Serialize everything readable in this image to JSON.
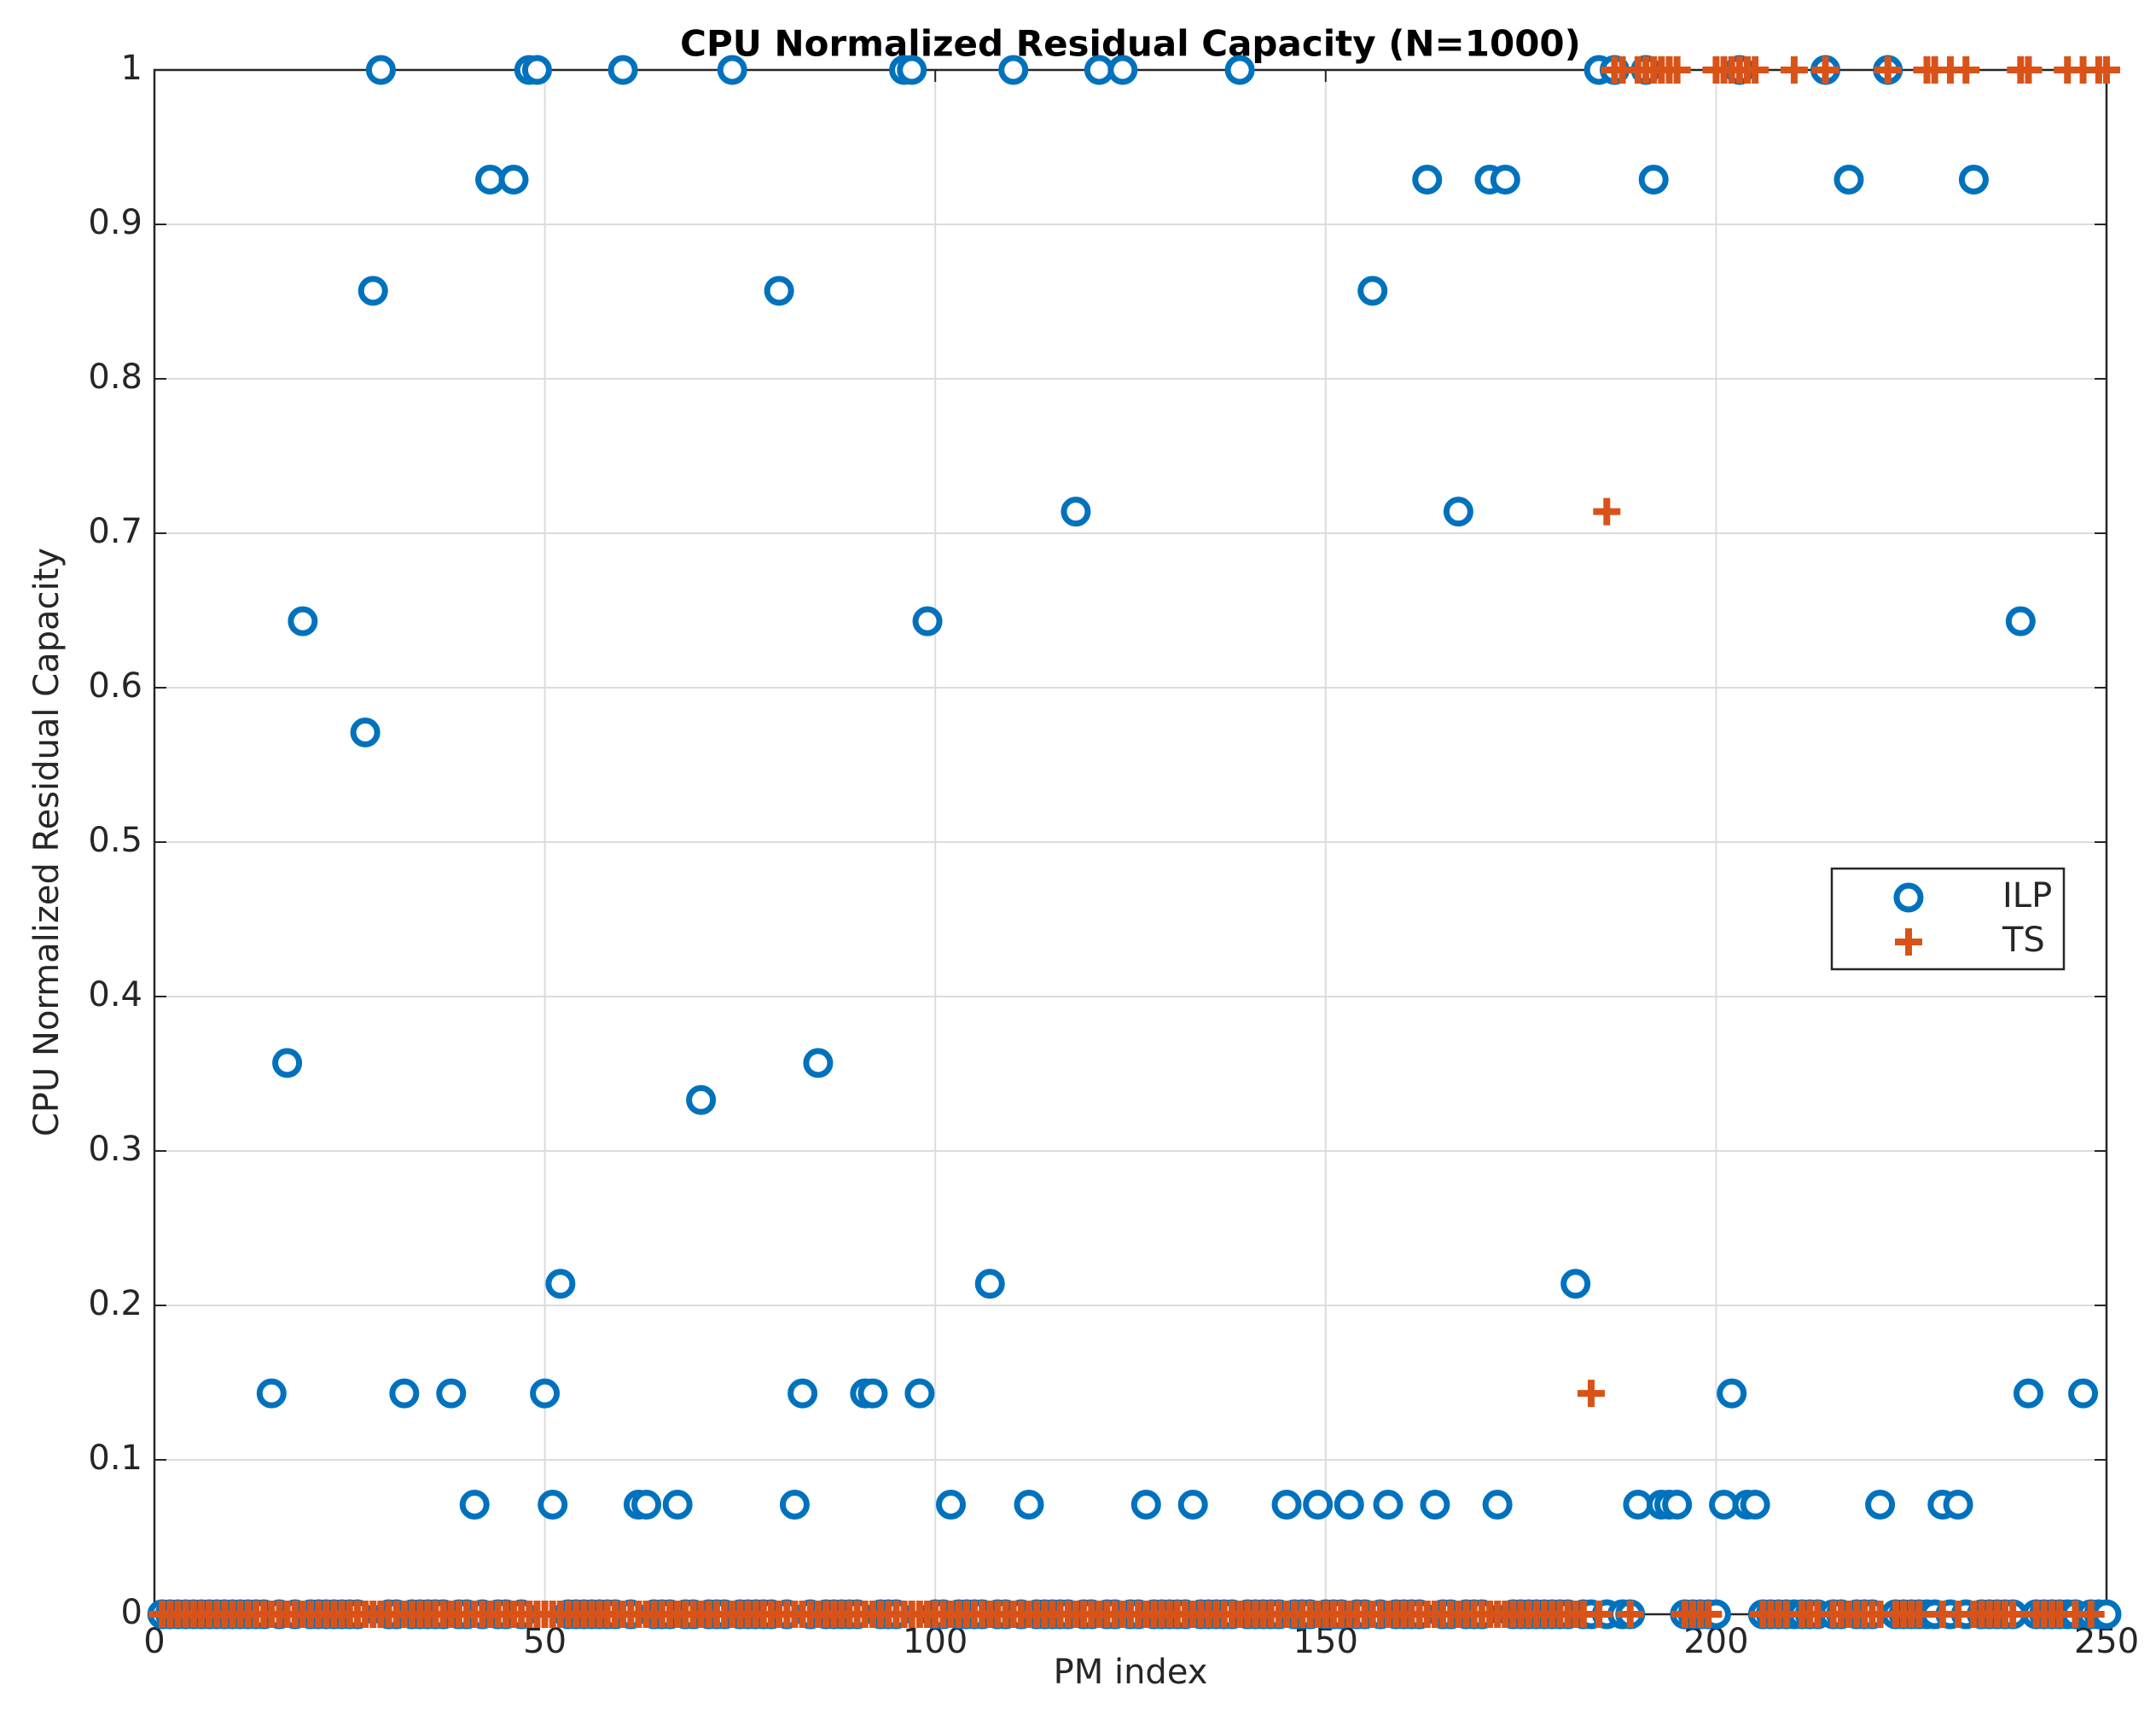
{
  "chart_data": {
    "type": "scatter",
    "title": "CPU Normalized Residual Capacity (N=1000)",
    "xlabel": "PM index",
    "ylabel": "CPU Normalized Residual Capacity",
    "xlim": [
      0,
      250
    ],
    "ylim": [
      0,
      1
    ],
    "xticks": [
      0,
      50,
      100,
      150,
      200,
      250
    ],
    "yticks": [
      0,
      0.1,
      0.2,
      0.3,
      0.4,
      0.5,
      0.6,
      0.7,
      0.8,
      0.9,
      1
    ],
    "grid": true,
    "legend": "east",
    "x": [
      1,
      2,
      3,
      4,
      5,
      6,
      7,
      8,
      9,
      10,
      11,
      12,
      13,
      14,
      15,
      16,
      17,
      18,
      19,
      20,
      21,
      22,
      23,
      24,
      25,
      26,
      27,
      28,
      29,
      30,
      31,
      32,
      33,
      34,
      35,
      36,
      37,
      38,
      39,
      40,
      41,
      42,
      43,
      44,
      45,
      46,
      47,
      48,
      49,
      50,
      51,
      52,
      53,
      54,
      55,
      56,
      57,
      58,
      59,
      60,
      61,
      62,
      63,
      64,
      65,
      66,
      67,
      68,
      69,
      70,
      71,
      72,
      73,
      74,
      75,
      76,
      77,
      78,
      79,
      80,
      81,
      82,
      83,
      84,
      85,
      86,
      87,
      88,
      89,
      90,
      91,
      92,
      93,
      94,
      95,
      96,
      97,
      98,
      99,
      100,
      101,
      102,
      103,
      104,
      105,
      106,
      107,
      108,
      109,
      110,
      111,
      112,
      113,
      114,
      115,
      116,
      117,
      118,
      119,
      120,
      121,
      122,
      123,
      124,
      125,
      126,
      127,
      128,
      129,
      130,
      131,
      132,
      133,
      134,
      135,
      136,
      137,
      138,
      139,
      140,
      141,
      142,
      143,
      144,
      145,
      146,
      147,
      148,
      149,
      150,
      151,
      152,
      153,
      154,
      155,
      156,
      157,
      158,
      159,
      160,
      161,
      162,
      163,
      164,
      165,
      166,
      167,
      168,
      169,
      170,
      171,
      172,
      173,
      174,
      175,
      176,
      177,
      178,
      179,
      180,
      181,
      182,
      183,
      184,
      185,
      186,
      187,
      188,
      189,
      190,
      191,
      192,
      193,
      194,
      195,
      196,
      197,
      198,
      199,
      200,
      201,
      202,
      203,
      204,
      205,
      206,
      207,
      208,
      209,
      210,
      211,
      212,
      213,
      214,
      215,
      216,
      217,
      218,
      219,
      220,
      221,
      222,
      223,
      224,
      225,
      226,
      227,
      228,
      229,
      230,
      231,
      232,
      233,
      234,
      235,
      236,
      237,
      238,
      239,
      240,
      241,
      242,
      243,
      244,
      245,
      246,
      247,
      248,
      249,
      250
    ],
    "series": [
      {
        "name": "ILP",
        "color": "#0072bd",
        "marker": "circle",
        "values": [
          0,
          0,
          0,
          0,
          0,
          0,
          0,
          0,
          0,
          0,
          0,
          0,
          0,
          0,
          0.143,
          0,
          0.357,
          0,
          0.643,
          0,
          0,
          0,
          0,
          0,
          0,
          0,
          0.571,
          0.857,
          1,
          0,
          0,
          0.143,
          0,
          0,
          0,
          0,
          0,
          0.143,
          0,
          0,
          0.071,
          0,
          0.929,
          0,
          0,
          0.929,
          0,
          1,
          1,
          0.143,
          0.071,
          0.214,
          0,
          0,
          0,
          0,
          0,
          0,
          0,
          1,
          0,
          0.071,
          0.071,
          0,
          0,
          0,
          0.071,
          0,
          0,
          0.333,
          0,
          0,
          0,
          1,
          0,
          0,
          0,
          0,
          0,
          0.857,
          0,
          0.071,
          0.143,
          0,
          0.357,
          0,
          0,
          0,
          0,
          0,
          0.143,
          0.143,
          0,
          0,
          0,
          1,
          1,
          0.143,
          0.643,
          0,
          0,
          0.071,
          0,
          0,
          0,
          0,
          0.214,
          0,
          0,
          1,
          0,
          0.071,
          0,
          0,
          0,
          0,
          0,
          0.714,
          0,
          0,
          1,
          0,
          0,
          1,
          0,
          0,
          0.071,
          0,
          0,
          0,
          0,
          0,
          0.071,
          0,
          0,
          0,
          0,
          0,
          1,
          0,
          0,
          0,
          0,
          0,
          0.071,
          0,
          0,
          0,
          0.071,
          0,
          0,
          0,
          0.071,
          0,
          0,
          0.857,
          0,
          0.071,
          0,
          0,
          0,
          0,
          0.929,
          0.071,
          0,
          0,
          0.714,
          0,
          0,
          0,
          0.929,
          0.071,
          0.929,
          0,
          0,
          0,
          0,
          0,
          0,
          0,
          0,
          0.214,
          0,
          0,
          1,
          0,
          1,
          0,
          0,
          0.071,
          1,
          0.929,
          0.071,
          0.071,
          0.071,
          0,
          0,
          0,
          0,
          0,
          0.071,
          0.143,
          1,
          0.071,
          0.071,
          0,
          0,
          0,
          0,
          0,
          0,
          0,
          0,
          1,
          0,
          0,
          0.929,
          0,
          0,
          0,
          0.071,
          1,
          0,
          0,
          0,
          0,
          0,
          0,
          0.071,
          0,
          0.071,
          0,
          0.929,
          0,
          0,
          0,
          0,
          0,
          0.643,
          0.143,
          0,
          0,
          0,
          0,
          0,
          0,
          0.143,
          0,
          0,
          0
        ]
      },
      {
        "name": "TS",
        "color": "#d95319",
        "marker": "plus",
        "values": [
          0,
          0,
          0,
          0,
          0,
          0,
          0,
          0,
          0,
          0,
          0,
          0,
          0,
          0,
          0,
          0,
          0,
          0,
          0,
          0,
          0,
          0,
          0,
          0,
          0,
          0,
          0,
          0,
          0,
          0,
          0,
          0,
          0,
          0,
          0,
          0,
          0,
          0,
          0,
          0,
          0,
          0,
          0,
          0,
          0,
          0,
          0,
          0,
          0,
          0,
          0,
          0,
          0,
          0,
          0,
          0,
          0,
          0,
          0,
          0,
          0,
          0,
          0,
          0,
          0,
          0,
          0,
          0,
          0,
          0,
          0,
          0,
          0,
          0,
          0,
          0,
          0,
          0,
          0,
          0,
          0,
          0,
          0,
          0,
          0,
          0,
          0,
          0,
          0,
          0,
          0,
          0,
          0,
          0,
          0,
          0,
          0,
          0,
          0,
          0,
          0,
          0,
          0,
          0,
          0,
          0,
          0,
          0,
          0,
          0,
          0,
          0,
          0,
          0,
          0,
          0,
          0,
          0,
          0,
          0,
          0,
          0,
          0,
          0,
          0,
          0,
          0,
          0,
          0,
          0,
          0,
          0,
          0,
          0,
          0,
          0,
          0,
          0,
          0,
          0,
          0,
          0,
          0,
          0,
          0,
          0,
          0,
          0,
          0,
          0,
          0,
          0,
          0,
          0,
          0,
          0,
          0,
          0,
          0,
          0,
          0,
          0,
          0,
          0,
          0,
          0,
          0,
          0,
          0,
          0,
          0,
          0,
          0,
          0,
          0,
          0,
          0,
          0,
          0,
          0,
          0,
          0,
          0,
          0.143,
          0,
          0.714,
          1,
          1,
          0,
          1,
          1,
          1,
          1,
          1,
          1,
          0,
          0,
          0,
          0,
          1,
          1,
          1,
          1,
          1,
          1,
          0,
          0,
          0,
          0,
          1,
          0,
          0,
          0,
          1,
          0,
          0,
          0,
          0,
          0,
          0,
          0,
          1,
          0,
          0,
          0,
          0,
          1,
          1,
          0,
          1,
          0,
          1,
          0,
          0,
          0,
          0,
          0,
          0,
          1,
          1,
          0,
          0,
          0,
          0,
          1,
          0,
          1,
          0,
          1,
          1
        ]
      }
    ]
  }
}
